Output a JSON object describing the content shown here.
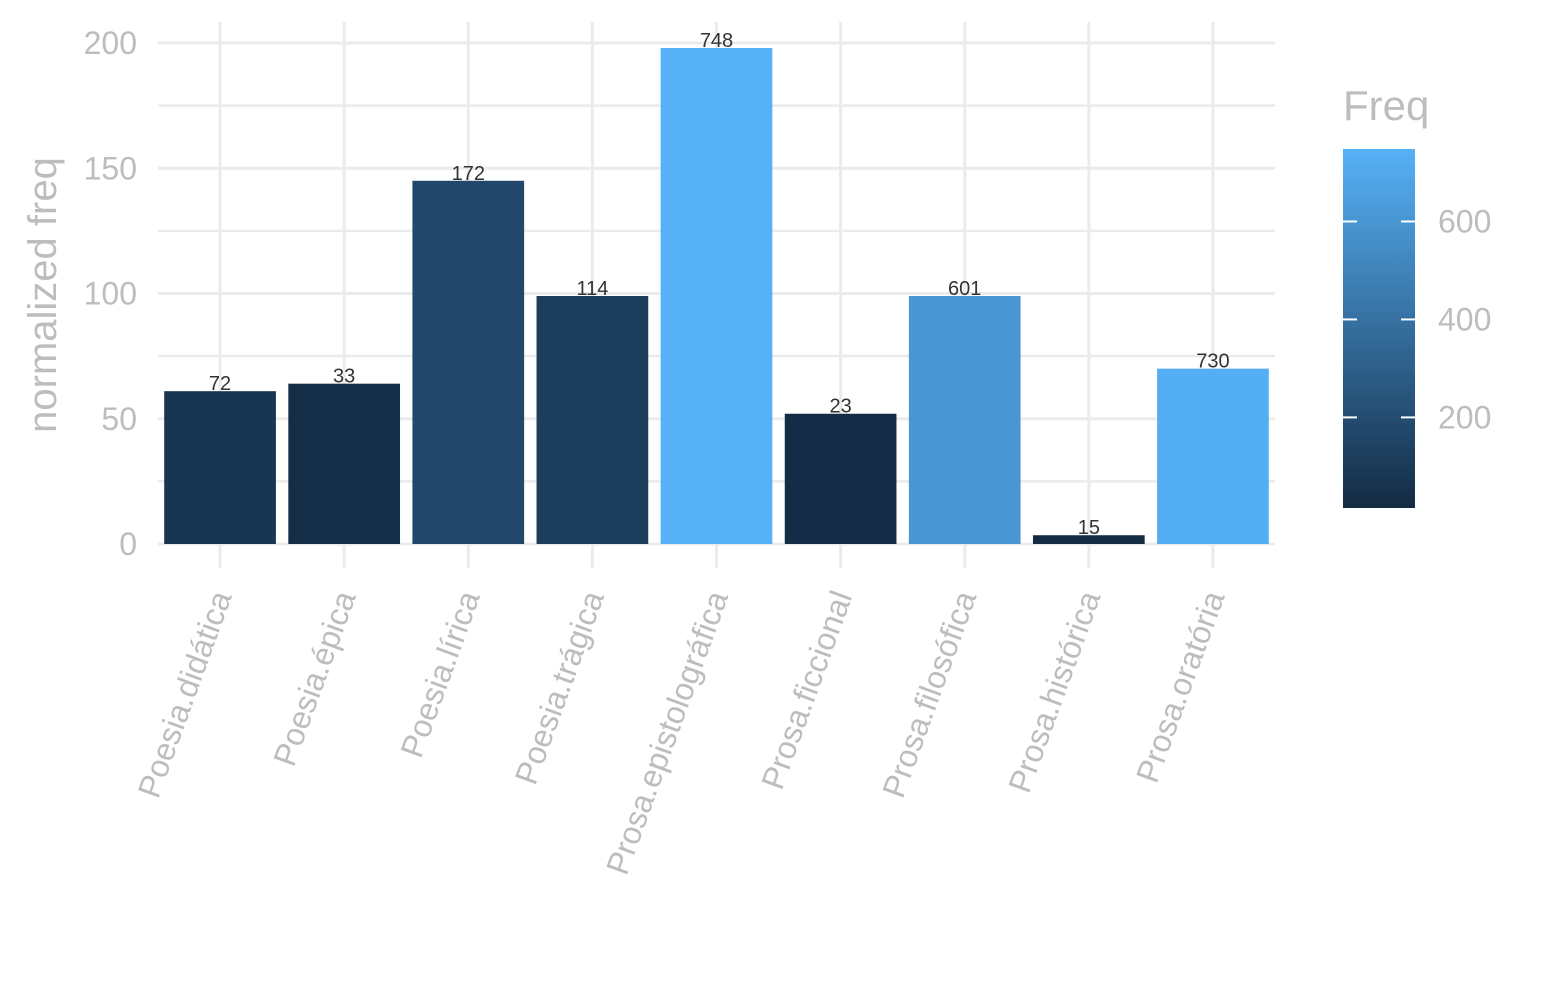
{
  "chart_data": {
    "type": "bar",
    "categories": [
      "Poesia.didática",
      "Poesia.épica",
      "Poesia.lírica",
      "Poesia.trágica",
      "Prosa.epistolográfica",
      "Prosa.ficcional",
      "Prosa.filosófica",
      "Prosa.histórica",
      "Prosa.oratória"
    ],
    "values": [
      61,
      64,
      145,
      99,
      198,
      52,
      99,
      3.5,
      70
    ],
    "freq": [
      72,
      33,
      172,
      114,
      748,
      23,
      601,
      15,
      730
    ],
    "bar_labels": [
      "72",
      "33",
      "172",
      "114",
      "748",
      "23",
      "601",
      "15",
      "730"
    ],
    "ylabel": "normalized freq",
    "xlabel": "",
    "ylim": [
      0,
      200
    ],
    "yticks": [
      0,
      50,
      100,
      150,
      200
    ],
    "ytick_labels": [
      "0",
      "50",
      "100",
      "150",
      "200"
    ],
    "grid": true,
    "legend": {
      "title": "Freq",
      "placement": "right",
      "range": [
        15,
        748
      ],
      "ticks": [
        200,
        400,
        600
      ],
      "tick_labels": [
        "200",
        "400",
        "600"
      ],
      "low_color": "#132B43",
      "high_color": "#56B1F7"
    }
  }
}
